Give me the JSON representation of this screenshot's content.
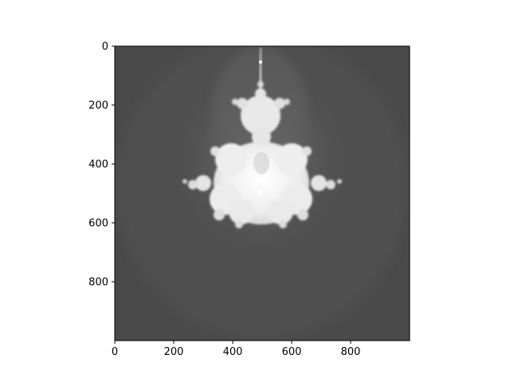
{
  "chart_data": {
    "type": "heatmap",
    "title": "",
    "xlabel": "",
    "ylabel": "",
    "colormap": "gray",
    "xlim": [
      0,
      1000
    ],
    "ylim": [
      1000,
      0
    ],
    "x_ticks": [
      0,
      200,
      400,
      600,
      800
    ],
    "y_ticks": [
      0,
      200,
      400,
      600,
      800
    ],
    "x_tick_labels": [
      "0",
      "200",
      "400",
      "600",
      "800"
    ],
    "y_tick_labels": [
      "0",
      "200",
      "400",
      "600",
      "800"
    ],
    "description": "Buddhabrot-style fractal density render: bright white Mandelbrot-set body centered near x=500, bulb spanning roughly y=140-590, with a faint halo on a dark gray background",
    "background_color": "#4a4a4a",
    "highlight_color": "#f2f2f2"
  }
}
